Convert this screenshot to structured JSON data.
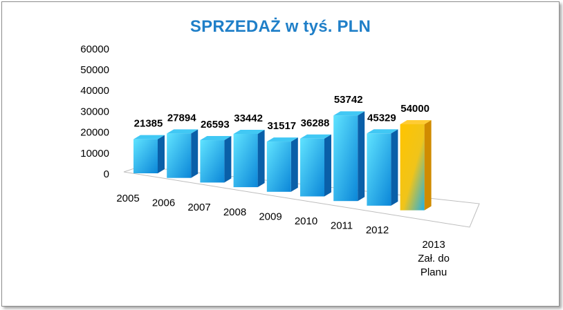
{
  "chart_data": {
    "type": "bar",
    "title": "SPRZEDAŻ w tyś. PLN",
    "categories": [
      "2005",
      "2006",
      "2007",
      "2008",
      "2009",
      "2010",
      "2011",
      "2012",
      "2013\nZał. do\nPlanu"
    ],
    "series": [
      {
        "values": [
          21385,
          27894,
          26593,
          33442,
          31517,
          36288,
          53742,
          45329,
          54000
        ]
      }
    ],
    "data_labels": [
      "21385",
      "27894",
      "26593",
      "33442",
      "31517",
      "36288",
      "53742",
      "45329",
      "54000"
    ],
    "yticks": [
      "0",
      "10000",
      "20000",
      "30000",
      "40000",
      "50000",
      "60000"
    ],
    "ylim": [
      0,
      60000
    ],
    "xlabel": "",
    "ylabel": "",
    "grid": false,
    "legend": "none",
    "projection": "3d-perspective",
    "colors": {
      "title": "#1f7fc8",
      "bar_front_light": "#5fe3ff",
      "bar_front_dark": "#0b86d8",
      "bar_side": "#0a5fa8",
      "bar_top": "#41c8f4",
      "highlight_front_light": "#ffc400",
      "highlight_front_mid": "#f0c41a",
      "highlight_front_dark": "#1fb0e6",
      "highlight_side": "#d08b00",
      "highlight_top": "#ffcc33",
      "floor_edge": "#bdbdbd"
    }
  }
}
